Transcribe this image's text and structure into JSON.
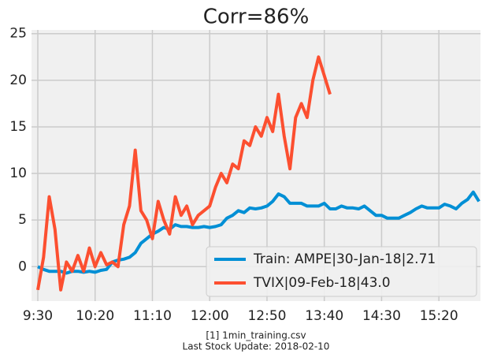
{
  "chart_data": {
    "type": "line",
    "title": "Corr=86%",
    "footer": [
      "[1] 1min_training.csv",
      "Last Stock Update: 2018-02-10"
    ],
    "x": [
      0,
      5,
      10,
      15,
      20,
      25,
      30,
      35,
      40,
      45,
      50,
      55,
      60,
      65,
      70,
      75,
      80,
      85,
      90,
      95,
      100,
      105,
      110,
      115,
      120,
      125,
      130,
      135,
      140,
      145,
      150,
      155,
      160,
      165,
      170,
      175,
      180,
      185,
      190,
      195,
      200,
      205,
      210,
      215,
      220,
      225,
      230,
      235,
      240,
      245,
      250,
      255,
      260,
      265,
      270,
      275,
      280,
      285,
      290,
      295,
      300,
      305,
      310,
      315,
      320,
      325,
      330,
      335,
      340,
      345,
      350,
      355,
      360,
      365,
      370,
      375,
      380,
      385
    ],
    "series": [
      {
        "name": "Train: AMPE|30-Jan-18|2.71",
        "color": "#008fd5",
        "values": [
          0,
          -0.3,
          -0.5,
          -0.5,
          -0.5,
          -0.7,
          -0.5,
          -0.5,
          -0.6,
          -0.5,
          -0.6,
          -0.4,
          -0.3,
          0.5,
          0.7,
          0.8,
          1.0,
          1.5,
          2.5,
          3,
          3.5,
          3.8,
          4.2,
          4,
          4.5,
          4.3,
          4.3,
          4.2,
          4.2,
          4.3,
          4.2,
          4.3,
          4.5,
          5.2,
          5.5,
          6,
          5.8,
          6.3,
          6.2,
          6.3,
          6.5,
          7.0,
          7.8,
          7.5,
          6.8,
          6.8,
          6.8,
          6.5,
          6.5,
          6.5,
          6.8,
          6.2,
          6.2,
          6.5,
          6.3,
          6.3,
          6.2,
          6.5,
          6.0,
          5.5,
          5.5,
          5.2,
          5.2,
          5.2,
          5.5,
          5.8,
          6.2,
          6.5,
          6.3,
          6.3,
          6.3,
          6.7,
          6.5,
          6.2,
          6.8,
          7.2,
          8,
          7.0
        ]
      },
      {
        "name": "TVIX|09-Feb-18|43.0",
        "color": "#fc4f30",
        "values": [
          -2.5,
          1,
          7.5,
          4,
          -2.5,
          0.5,
          -0.5,
          1.2,
          -0.5,
          2,
          0,
          1.5,
          0.2,
          0.5,
          0,
          4.5,
          6.5,
          12.5,
          6,
          5,
          3,
          7,
          5,
          3.5,
          7.5,
          5.5,
          6.5,
          4.5,
          5.5,
          6,
          6.5,
          8.5,
          10,
          9,
          11,
          10.5,
          13.5,
          13,
          15,
          14,
          16,
          14.5,
          18.5,
          14,
          10.5,
          16,
          17.5,
          16,
          20,
          22.5,
          20.5,
          18.5,
          null,
          null,
          null,
          null,
          null,
          null,
          null,
          null,
          null,
          null,
          null,
          null,
          null,
          null,
          null,
          null,
          null,
          null,
          null,
          null,
          null,
          null,
          null,
          null,
          null,
          null
        ]
      }
    ],
    "xlim": [
      -5.5,
      386.3
    ],
    "xticks": [
      {
        "value": 0,
        "label": "9:30"
      },
      {
        "value": 50,
        "label": "10:20"
      },
      {
        "value": 100,
        "label": "11:10"
      },
      {
        "value": 150,
        "label": "12:00"
      },
      {
        "value": 200,
        "label": "12:50"
      },
      {
        "value": 250,
        "label": "13:40"
      },
      {
        "value": 300,
        "label": "14:30"
      },
      {
        "value": 350,
        "label": "15:20"
      }
    ],
    "ylim": [
      -3.7,
      25.4
    ],
    "yticks": [
      0,
      5,
      10,
      15,
      20,
      25
    ],
    "grid": true,
    "legend": "lower right"
  }
}
